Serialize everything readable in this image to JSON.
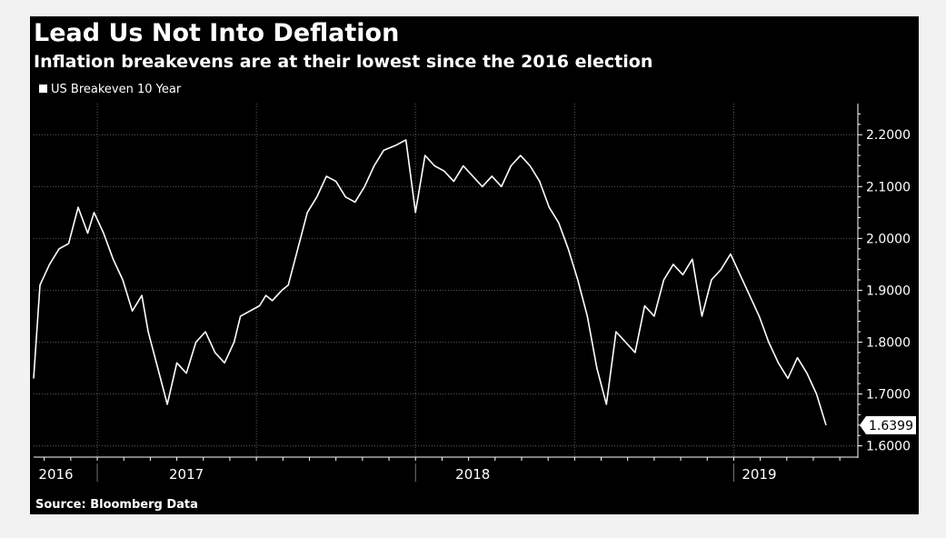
{
  "chart_data": {
    "type": "line",
    "title": "Lead Us Not Into Deflation",
    "subtitle": "Inflation breakevens are at their lowest since the 2016 election",
    "source": "Source: Bloomberg Data",
    "series": [
      {
        "name": "US Breakeven 10 Year",
        "color": "#ffffff",
        "x": [
          2016.8,
          2016.82,
          2016.85,
          2016.88,
          2016.91,
          2016.94,
          2016.97,
          2016.99,
          2017.02,
          2017.05,
          2017.08,
          2017.11,
          2017.14,
          2017.16,
          2017.19,
          2017.22,
          2017.25,
          2017.28,
          2017.31,
          2017.34,
          2017.37,
          2017.4,
          2017.43,
          2017.45,
          2017.48,
          2017.51,
          2017.53,
          2017.55,
          2017.58,
          2017.6,
          2017.63,
          2017.66,
          2017.69,
          2017.72,
          2017.75,
          2017.78,
          2017.81,
          2017.84,
          2017.87,
          2017.9,
          2017.94,
          2017.97,
          2018.0,
          2018.03,
          2018.06,
          2018.09,
          2018.12,
          2018.15,
          2018.18,
          2018.21,
          2018.24,
          2018.27,
          2018.3,
          2018.33,
          2018.36,
          2018.39,
          2018.42,
          2018.45,
          2018.48,
          2018.51,
          2018.54,
          2018.57,
          2018.6,
          2018.63,
          2018.66,
          2018.69,
          2018.72,
          2018.75,
          2018.78,
          2018.81,
          2018.84,
          2018.87,
          2018.9,
          2018.93,
          2018.96,
          2018.99,
          2019.02,
          2019.05,
          2019.08,
          2019.11,
          2019.14,
          2019.17,
          2019.2,
          2019.23,
          2019.26,
          2019.29
        ],
        "values": [
          1.73,
          1.91,
          1.95,
          1.98,
          1.99,
          2.06,
          2.01,
          2.05,
          2.01,
          1.96,
          1.92,
          1.86,
          1.89,
          1.82,
          1.75,
          1.68,
          1.76,
          1.74,
          1.8,
          1.82,
          1.78,
          1.76,
          1.8,
          1.85,
          1.86,
          1.87,
          1.89,
          1.88,
          1.9,
          1.91,
          1.98,
          2.05,
          2.08,
          2.12,
          2.11,
          2.08,
          2.07,
          2.1,
          2.14,
          2.17,
          2.18,
          2.19,
          2.05,
          2.16,
          2.14,
          2.13,
          2.11,
          2.14,
          2.12,
          2.1,
          2.12,
          2.1,
          2.14,
          2.16,
          2.14,
          2.11,
          2.06,
          2.03,
          1.98,
          1.92,
          1.85,
          1.75,
          1.68,
          1.82,
          1.8,
          1.78,
          1.87,
          1.85,
          1.92,
          1.95,
          1.93,
          1.96,
          1.85,
          1.92,
          1.94,
          1.97,
          1.93,
          1.89,
          1.85,
          1.8,
          1.76,
          1.73,
          1.77,
          1.74,
          1.7,
          1.64
        ]
      }
    ],
    "last_value_label": "1.6399",
    "last_value": 1.6399,
    "ylim": [
      1.58,
      2.26
    ],
    "yticks": [
      1.6,
      1.7,
      1.8,
      1.9,
      2.0,
      2.1,
      2.2
    ],
    "ytick_labels": [
      "1.6000",
      "1.7000",
      "1.8000",
      "1.9000",
      "2.0000",
      "2.1000",
      "2.2000"
    ],
    "xlim": [
      2016.8,
      2019.39
    ],
    "year_labels": [
      {
        "label": "2016",
        "x": 2016.87
      },
      {
        "label": "2017",
        "x": 2017.28
      },
      {
        "label": "2018",
        "x": 2018.18
      },
      {
        "label": "2019",
        "x": 2019.08
      }
    ],
    "year_boundaries": [
      2017.0,
      2018.0,
      2019.0
    ],
    "x_grid": [
      2017.0,
      2017.5,
      2018.0,
      2018.5,
      2019.0
    ],
    "grid": true,
    "legend_position": "top-left"
  },
  "colors": {
    "background": "#000000",
    "line": "#ffffff",
    "grid": "#5a5a5a",
    "text": "#ffffff"
  }
}
